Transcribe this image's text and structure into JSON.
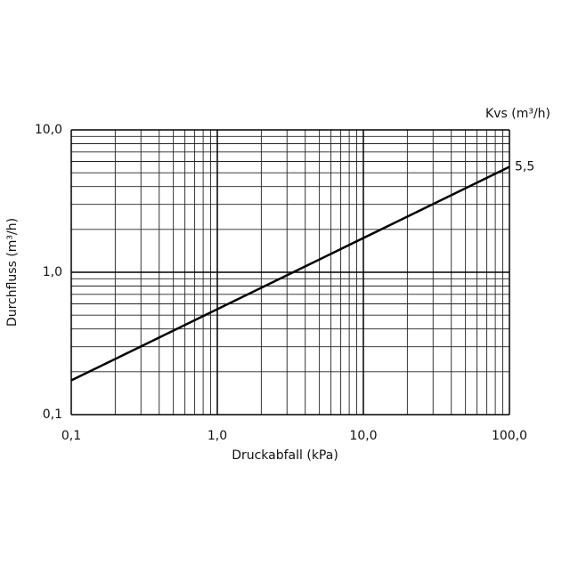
{
  "chart_data": {
    "type": "line",
    "x_label": "Druckabfall (kPa)",
    "y_label": "Durchfluss (m³/h)",
    "legend_title": "Kvs (m³/h)",
    "x": [
      0.1,
      100
    ],
    "series": [
      {
        "name": "5,5",
        "color": "#000000",
        "values": [
          0.174,
          5.5
        ]
      }
    ],
    "x_log": true,
    "y_log": true,
    "grid": true,
    "xlim": [
      0.1,
      100
    ],
    "ylim": [
      0.1,
      10
    ],
    "xticks": [
      {
        "value": 0.1,
        "label": "0,1"
      },
      {
        "value": 1,
        "label": "1,0"
      },
      {
        "value": 10,
        "label": "10,0"
      },
      {
        "value": 100,
        "label": "100,0"
      }
    ],
    "yticks": [
      {
        "value": 0.1,
        "label": "0,1"
      },
      {
        "value": 1,
        "label": "1,0"
      },
      {
        "value": 10,
        "label": "10,0"
      }
    ],
    "x_minor_grid": [
      0.2,
      0.3,
      0.4,
      0.5,
      0.6,
      0.7,
      0.8,
      0.9,
      2,
      3,
      4,
      5,
      6,
      7,
      8,
      9,
      20,
      30,
      40,
      50,
      60,
      70,
      80,
      90
    ],
    "y_minor_grid": [
      0.2,
      0.3,
      0.4,
      0.5,
      0.6,
      0.7,
      0.8,
      0.9,
      2,
      3,
      4,
      5,
      6,
      7,
      8,
      9
    ]
  }
}
